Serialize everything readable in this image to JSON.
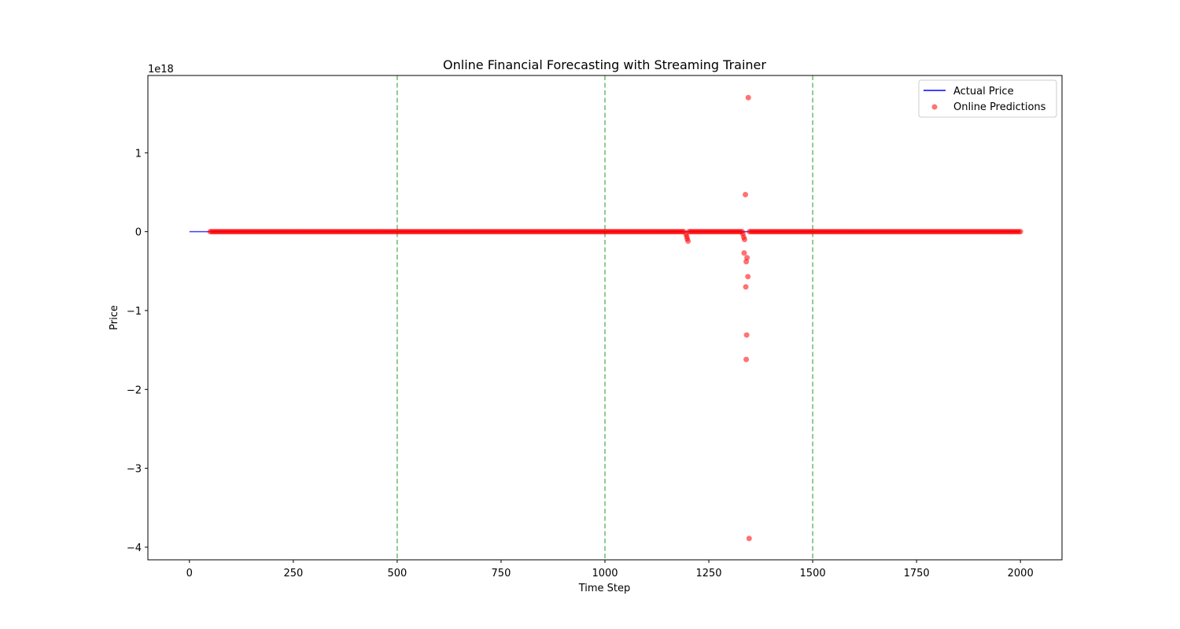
{
  "colors": {
    "actual": "#0000ff",
    "predictions": "#ff0000",
    "vlines": "#2ca02c",
    "background": "#ffffff",
    "axis": "#000000"
  },
  "chart_data": {
    "type": "line",
    "title": "Online Financial Forecasting with Streaming Trainer",
    "xlabel": "Time Step",
    "ylabel": "Price",
    "y_offset_text": "1e18",
    "xlim": [
      -100,
      2100
    ],
    "ylim": [
      -4.16,
      1.98
    ],
    "y_scale_factor": 1e+18,
    "xticks": [
      0,
      250,
      500,
      750,
      1000,
      1250,
      1500,
      1750,
      2000
    ],
    "xtick_labels": [
      "0",
      "250",
      "500",
      "750",
      "1000",
      "1250",
      "1500",
      "1750",
      "2000"
    ],
    "yticks": [
      -4,
      -3,
      -2,
      -1,
      0,
      1
    ],
    "ytick_labels": [
      "−4",
      "−3",
      "−2",
      "−1",
      "0",
      "1"
    ],
    "grid": false,
    "legend_position": "top-right",
    "vlines": [
      500,
      1000,
      1500
    ],
    "series": [
      {
        "name": "Actual Price",
        "type": "line",
        "x_start": 0,
        "x_end": 2000,
        "value": 0
      },
      {
        "name": "Online Predictions",
        "type": "scatter",
        "dense_ranges": [
          [
            50,
            1193
          ],
          [
            1202,
            1330
          ],
          [
            1348,
            2000
          ]
        ],
        "dense_value": 0,
        "outliers": [
          {
            "x": 1195,
            "y": -0.03
          },
          {
            "x": 1197,
            "y": -0.06
          },
          {
            "x": 1198,
            "y": -0.09
          },
          {
            "x": 1200,
            "y": -0.12
          },
          {
            "x": 1332,
            "y": -0.03
          },
          {
            "x": 1334,
            "y": -0.07
          },
          {
            "x": 1336,
            "y": -0.1
          },
          {
            "x": 1335,
            "y": -0.27
          },
          {
            "x": 1342,
            "y": -0.33
          },
          {
            "x": 1340,
            "y": -0.38
          },
          {
            "x": 1344,
            "y": -0.57
          },
          {
            "x": 1339,
            "y": -0.7
          },
          {
            "x": 1341,
            "y": -1.31
          },
          {
            "x": 1340,
            "y": -1.62
          },
          {
            "x": 1347,
            "y": -3.89
          },
          {
            "x": 1338,
            "y": 0.47
          },
          {
            "x": 1345,
            "y": 1.7
          }
        ]
      }
    ]
  }
}
